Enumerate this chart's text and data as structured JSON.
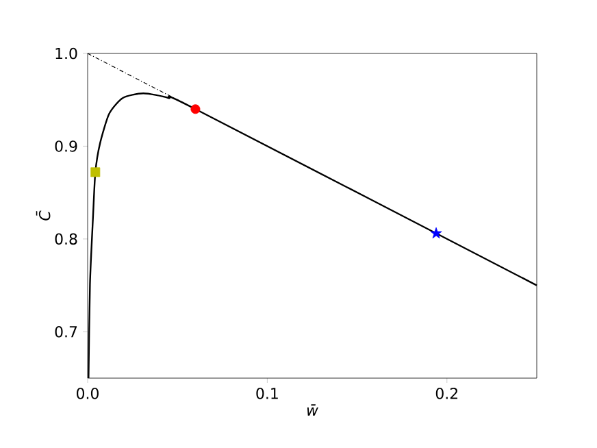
{
  "chart_data": {
    "type": "line",
    "xlabel": "w̄",
    "ylabel": "C̄",
    "xlim": [
      0,
      0.25
    ],
    "ylim": [
      0.65,
      1.0
    ],
    "xticks": [
      {
        "value": 0,
        "label": "0.0"
      },
      0.1,
      0.2
    ],
    "yticks": [
      0.7,
      0.8,
      0.9,
      {
        "value": 1.0,
        "label": "1.0"
      }
    ],
    "grid": false,
    "legend": false,
    "series": [
      {
        "color": "#000000",
        "line_style": "solid",
        "x": [
          0.0005,
          0.0013,
          0.003,
          0.0043,
          0.0069,
          0.012,
          0.0196,
          0.031,
          0.045,
          0.06,
          0.25
        ],
        "values": [
          0.65,
          0.751,
          0.824,
          0.872,
          0.903,
          0.935,
          0.952,
          0.957,
          0.952,
          0.94,
          0.75
        ]
      },
      {
        "type": "line",
        "color": "#000000",
        "line_style": "dashdot",
        "x": [
          0,
          0.06
        ],
        "values": [
          1.0,
          0.94
        ]
      },
      {
        "type": "scatter",
        "color": "#bfbf00",
        "marker": "square",
        "x": [
          0.0043
        ],
        "values": [
          0.872
        ]
      },
      {
        "type": "scatter",
        "color": "#ff0000",
        "marker": "circle",
        "x": [
          0.06
        ],
        "values": [
          0.94
        ]
      },
      {
        "type": "scatter",
        "color": "#0000ff",
        "marker": "star",
        "x": [
          0.194
        ],
        "values": [
          0.806
        ]
      }
    ]
  }
}
